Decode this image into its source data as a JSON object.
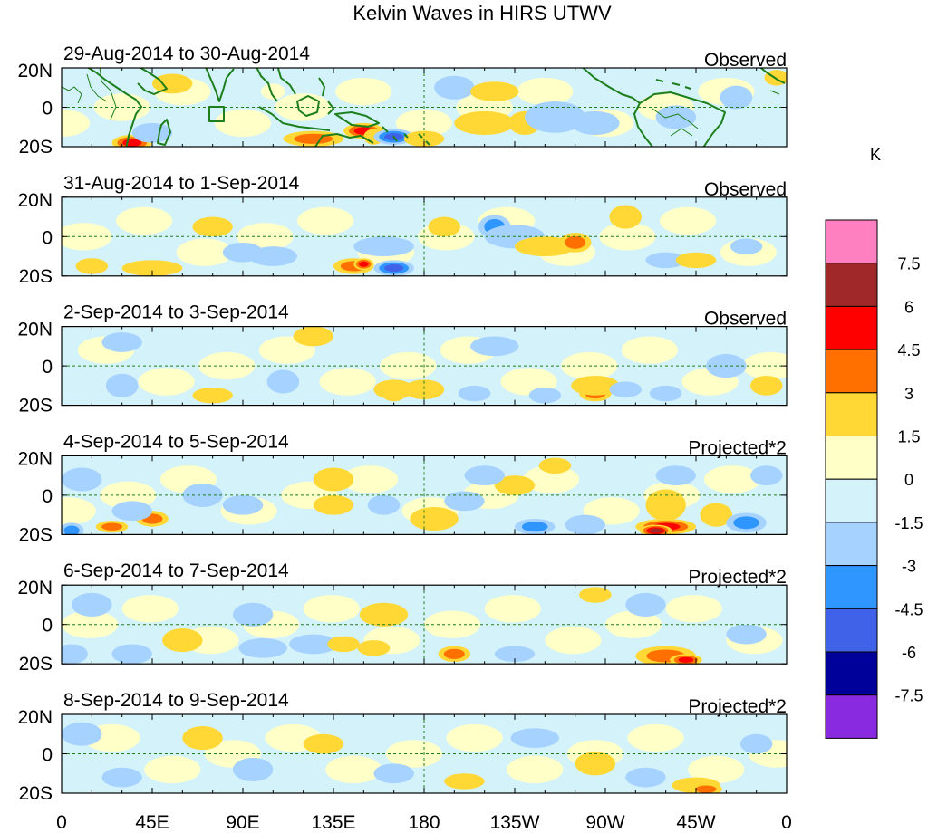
{
  "chart_data": {
    "type": "heatmap",
    "title": "Kelvin Waves in HIRS UTWV",
    "colorbar_unit": "K",
    "colorbar_levels": [
      "7.5",
      "6",
      "4.5",
      "3",
      "1.5",
      "0",
      "-1.5",
      "-3",
      "-4.5",
      "-6",
      "-7.5"
    ],
    "colorbar_colors": [
      "#ff80c0",
      "#a02828",
      "#ff0000",
      "#ff7000",
      "#ffd836",
      "#ffffc8",
      "#d4f2fa",
      "#a6d2ff",
      "#2f96ff",
      "#4062e8",
      "#00009a",
      "#8a2ae0"
    ],
    "x_ticks": [
      "0",
      "45E",
      "90E",
      "135E",
      "180",
      "135W",
      "90W",
      "45W",
      "0"
    ],
    "y_ticks": [
      "20N",
      "0",
      "20S"
    ],
    "lon_range": [
      0,
      360
    ],
    "lat_range": [
      -20,
      20
    ],
    "panels": [
      {
        "date_range": "29-Aug-2014 to 30-Aug-2014",
        "label": "Observed",
        "blobs": [
          [
            35,
            -18,
            10,
            4,
            4.6
          ],
          [
            45,
            -13,
            10,
            5,
            -1.6
          ],
          [
            55,
            12,
            10,
            5,
            1.8
          ],
          [
            105,
            8,
            6,
            4,
            1.2
          ],
          [
            125,
            -16,
            15,
            4,
            3.6
          ],
          [
            150,
            -12,
            10,
            4,
            4.5
          ],
          [
            155,
            -15,
            5,
            4,
            2.8
          ],
          [
            165,
            -15,
            10,
            4,
            -5.5
          ],
          [
            180,
            -16,
            10,
            4,
            2.2
          ],
          [
            195,
            10,
            10,
            6,
            -2.2
          ],
          [
            215,
            8,
            12,
            5,
            2.8
          ],
          [
            210,
            -8,
            15,
            6,
            2.6
          ],
          [
            230,
            -8,
            8,
            6,
            2.4
          ],
          [
            245,
            -5,
            15,
            8,
            -2.6
          ],
          [
            265,
            -8,
            12,
            6,
            -1.8
          ],
          [
            305,
            -5,
            10,
            6,
            -2.2
          ],
          [
            335,
            5,
            8,
            6,
            -1.6
          ],
          [
            355,
            15,
            6,
            4,
            2.0
          ]
        ]
      },
      {
        "date_range": "31-Aug-2014 to 1-Sep-2014",
        "label": "Observed",
        "blobs": [
          [
            15,
            -15,
            8,
            4,
            1.8
          ],
          [
            45,
            -16,
            15,
            4,
            1.8
          ],
          [
            75,
            5,
            10,
            5,
            2.4
          ],
          [
            90,
            -8,
            10,
            5,
            -1.6
          ],
          [
            105,
            -10,
            12,
            5,
            -1.6
          ],
          [
            145,
            -15,
            10,
            4,
            3.6
          ],
          [
            150,
            -14,
            5,
            3,
            4.6
          ],
          [
            165,
            -16,
            10,
            4,
            -4.6
          ],
          [
            160,
            -5,
            15,
            5,
            -1.6
          ],
          [
            190,
            5,
            8,
            5,
            2.8
          ],
          [
            215,
            5,
            8,
            6,
            -3.0
          ],
          [
            225,
            0,
            15,
            6,
            -1.6
          ],
          [
            240,
            -5,
            15,
            5,
            1.8
          ],
          [
            255,
            -3,
            8,
            5,
            3.0
          ],
          [
            280,
            10,
            8,
            6,
            2.2
          ],
          [
            300,
            -12,
            10,
            4,
            -1.6
          ],
          [
            315,
            -12,
            10,
            4,
            1.8
          ],
          [
            340,
            -5,
            8,
            4,
            -1.6
          ]
        ]
      },
      {
        "date_range": "2-Sep-2014 to 3-Sep-2014",
        "label": "Observed",
        "blobs": [
          [
            30,
            12,
            10,
            5,
            -1.6
          ],
          [
            30,
            -10,
            8,
            6,
            -1.6
          ],
          [
            75,
            -15,
            10,
            4,
            1.8
          ],
          [
            110,
            -8,
            8,
            6,
            -1.6
          ],
          [
            125,
            15,
            10,
            5,
            1.8
          ],
          [
            165,
            -14,
            6,
            4,
            3.8
          ],
          [
            165,
            -12,
            10,
            5,
            2.2
          ],
          [
            180,
            -12,
            10,
            5,
            1.8
          ],
          [
            205,
            -14,
            8,
            4,
            -2.2
          ],
          [
            215,
            10,
            12,
            5,
            -1.6
          ],
          [
            240,
            -15,
            8,
            4,
            -1.6
          ],
          [
            265,
            -14,
            8,
            4,
            3.6
          ],
          [
            265,
            -10,
            12,
            5,
            2.2
          ],
          [
            280,
            -12,
            8,
            4,
            -1.6
          ],
          [
            300,
            -14,
            8,
            4,
            -2.8
          ],
          [
            330,
            0,
            10,
            6,
            -1.6
          ],
          [
            350,
            -10,
            8,
            5,
            1.8
          ]
        ]
      },
      {
        "date_range": "4-Sep-2014 to 5-Sep-2014",
        "label": "Projected*2",
        "blobs": [
          [
            25,
            -16,
            8,
            3,
            3.0
          ],
          [
            45,
            -12,
            8,
            4,
            3.0
          ],
          [
            35,
            -8,
            10,
            5,
            -1.6
          ],
          [
            5,
            -18,
            6,
            4,
            -3.5
          ],
          [
            10,
            8,
            10,
            6,
            -2.0
          ],
          [
            70,
            0,
            10,
            6,
            -2.0
          ],
          [
            90,
            -5,
            10,
            5,
            -2.5
          ],
          [
            135,
            8,
            10,
            6,
            2.8
          ],
          [
            135,
            -5,
            10,
            5,
            2.6
          ],
          [
            185,
            -14,
            8,
            4,
            4.5
          ],
          [
            185,
            -12,
            12,
            6,
            2.8
          ],
          [
            160,
            -5,
            8,
            5,
            -2.0
          ],
          [
            200,
            -3,
            10,
            5,
            -2.0
          ],
          [
            225,
            5,
            10,
            5,
            2.0
          ],
          [
            235,
            -16,
            10,
            4,
            -3.5
          ],
          [
            245,
            15,
            8,
            4,
            2.4
          ],
          [
            210,
            10,
            10,
            5,
            -1.6
          ],
          [
            260,
            -15,
            10,
            5,
            -2.2
          ],
          [
            300,
            -16,
            15,
            4,
            4.5
          ],
          [
            295,
            -18,
            8,
            3,
            6.5
          ],
          [
            300,
            -5,
            10,
            8,
            2.0
          ],
          [
            305,
            10,
            10,
            5,
            -1.6
          ],
          [
            325,
            -10,
            8,
            6,
            1.8
          ],
          [
            340,
            -14,
            10,
            5,
            -3.8
          ],
          [
            350,
            10,
            8,
            5,
            -1.6
          ]
        ]
      },
      {
        "date_range": "6-Sep-2014 to 7-Sep-2014",
        "label": "Projected*2",
        "blobs": [
          [
            5,
            -15,
            8,
            5,
            -2.0
          ],
          [
            15,
            10,
            10,
            6,
            -1.6
          ],
          [
            35,
            -15,
            10,
            5,
            -2.2
          ],
          [
            60,
            -8,
            10,
            6,
            1.8
          ],
          [
            95,
            5,
            10,
            6,
            -2.0
          ],
          [
            100,
            -12,
            12,
            5,
            -1.8
          ],
          [
            125,
            -10,
            12,
            5,
            -1.6
          ],
          [
            140,
            -10,
            8,
            4,
            2.0
          ],
          [
            155,
            -12,
            8,
            4,
            1.8
          ],
          [
            160,
            5,
            12,
            6,
            2.0
          ],
          [
            195,
            -15,
            8,
            4,
            3.0
          ],
          [
            225,
            -15,
            10,
            4,
            -1.6
          ],
          [
            265,
            15,
            8,
            4,
            1.8
          ],
          [
            290,
            10,
            10,
            6,
            -1.6
          ],
          [
            300,
            -16,
            15,
            5,
            4.4
          ],
          [
            310,
            -18,
            8,
            3,
            5.6
          ],
          [
            340,
            -5,
            10,
            5,
            -1.6
          ]
        ]
      },
      {
        "date_range": "8-Sep-2014 to 9-Sep-2014",
        "label": "Projected*2",
        "blobs": [
          [
            10,
            10,
            10,
            6,
            -1.6
          ],
          [
            30,
            -12,
            10,
            5,
            -1.6
          ],
          [
            70,
            8,
            10,
            6,
            1.8
          ],
          [
            95,
            -8,
            10,
            6,
            -1.6
          ],
          [
            130,
            5,
            10,
            5,
            1.8
          ],
          [
            165,
            -10,
            10,
            5,
            -1.6
          ],
          [
            200,
            -14,
            10,
            4,
            1.8
          ],
          [
            235,
            8,
            12,
            5,
            -1.6
          ],
          [
            265,
            -5,
            10,
            6,
            1.8
          ],
          [
            290,
            -12,
            10,
            5,
            -1.6
          ],
          [
            315,
            -16,
            12,
            4,
            2.8
          ],
          [
            320,
            -18,
            8,
            3,
            3.6
          ],
          [
            345,
            5,
            8,
            5,
            -1.6
          ]
        ]
      }
    ]
  }
}
